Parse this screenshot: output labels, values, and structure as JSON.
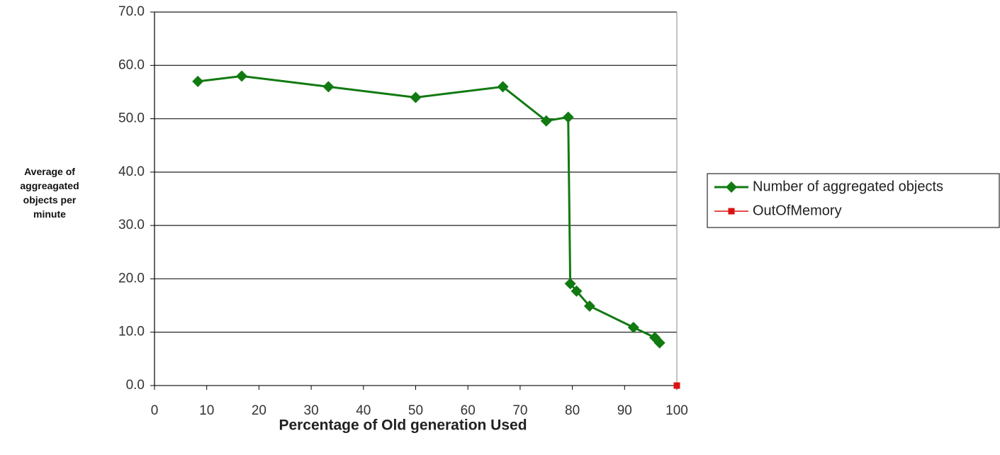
{
  "chart_data": {
    "type": "line",
    "xlabel": "Percentage of Old generation Used",
    "ylabel": "Average of aggreagated objects per minute",
    "xlim": [
      0,
      100
    ],
    "xticks": [
      0,
      10,
      20,
      30,
      40,
      50,
      60,
      70,
      80,
      90,
      100
    ],
    "ylim": [
      0,
      70
    ],
    "yticks": [
      {
        "value": 0,
        "label": "0.0"
      },
      {
        "value": 10,
        "label": "10.0"
      },
      {
        "value": 20,
        "label": "20.0"
      },
      {
        "value": 30,
        "label": "30.0"
      },
      {
        "value": 40,
        "label": "40.0"
      },
      {
        "value": 50,
        "label": "50.0"
      },
      {
        "value": 60,
        "label": "60.0"
      },
      {
        "value": 70,
        "label": "70.0"
      }
    ],
    "grid": true,
    "legend": "right",
    "series": [
      {
        "name": "Number of aggregated objects",
        "color": "#117a11",
        "marker": "diamond",
        "x": [
          8.3,
          16.7,
          33.3,
          50,
          66.7,
          75,
          79.2,
          79.6,
          80.8,
          83.3,
          91.7,
          95.8,
          96.7
        ],
        "values": [
          57.0,
          58.0,
          56.0,
          54.0,
          56.0,
          49.6,
          50.3,
          19.1,
          17.7,
          14.9,
          10.9,
          9.0,
          8.0
        ]
      },
      {
        "name": "OutOfMemory",
        "color": "#dd1111",
        "marker": "square",
        "x": [
          100
        ],
        "values": [
          0
        ]
      }
    ]
  }
}
